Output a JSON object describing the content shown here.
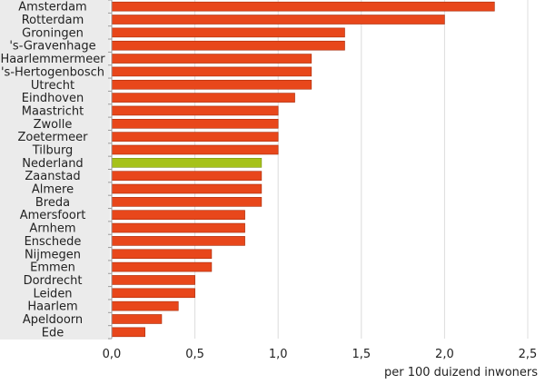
{
  "chart_data": {
    "type": "bar",
    "orientation": "horizontal",
    "categories": [
      "Amsterdam",
      "Rotterdam",
      "Groningen",
      "'s-Gravenhage",
      "Haarlemmermeer",
      "'s-Hertogenbosch",
      "Utrecht",
      "Eindhoven",
      "Maastricht",
      "Zwolle",
      "Zoetermeer",
      "Tilburg",
      "Nederland",
      "Zaanstad",
      "Almere",
      "Breda",
      "Amersfoort",
      "Arnhem",
      "Enschede",
      "Nijmegen",
      "Emmen",
      "Dordrecht",
      "Leiden",
      "Haarlem",
      "Apeldoorn",
      "Ede"
    ],
    "values": [
      2.3,
      2.0,
      1.4,
      1.4,
      1.2,
      1.2,
      1.2,
      1.1,
      1.0,
      1.0,
      1.0,
      1.0,
      0.9,
      0.9,
      0.9,
      0.9,
      0.8,
      0.8,
      0.8,
      0.6,
      0.6,
      0.5,
      0.5,
      0.4,
      0.3,
      0.2
    ],
    "highlight_category": "Nederland",
    "xlabel": "per 100 duizend inwoners",
    "xlim": [
      0,
      2.5
    ],
    "xticks": [
      "0,0",
      "0,5",
      "1,0",
      "1,5",
      "2,0",
      "2,5"
    ],
    "xtick_values": [
      0,
      0.5,
      1.0,
      1.5,
      2.0,
      2.5
    ],
    "grid": "vertical",
    "colors": {
      "bar": "#e8471b",
      "bar_stroke": "#a62a08",
      "highlight": "#a6c219",
      "highlight_stroke": "#7a9012",
      "label_panel": "#ebebeb",
      "grid": "#dcdcdc",
      "axis": "#9a9a9a"
    }
  }
}
